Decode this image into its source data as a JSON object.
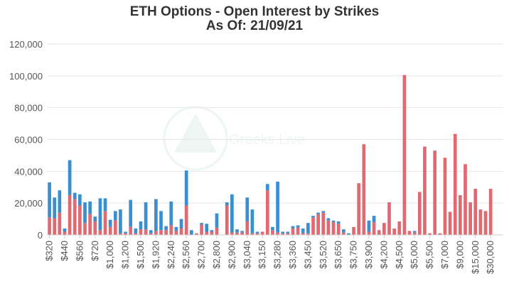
{
  "chart_data": {
    "type": "bar",
    "stacked": true,
    "title": "ETH Options - Open Interest by Strikes",
    "subtitle": "As Of: 21/09/21",
    "watermark": "Greeks.Live",
    "ylim": [
      0,
      120000
    ],
    "yticks": [
      "0",
      "20,000",
      "40,000",
      "60,000",
      "80,000",
      "100,000",
      "120,000"
    ],
    "ytick_values": [
      0,
      20000,
      40000,
      60000,
      80000,
      100000,
      120000
    ],
    "grid": true,
    "legend": "none",
    "colors": {
      "calls": "#3a8fd0",
      "puts": "#e06a72",
      "grid": "#e6e6e6",
      "axis": "#cccccc",
      "tick_text": "#555555"
    },
    "x_tick_labels": [
      {
        "index": 0,
        "label": "$320"
      },
      {
        "index": 3,
        "label": "$440"
      },
      {
        "index": 6,
        "label": "$560"
      },
      {
        "index": 9,
        "label": "$720"
      },
      {
        "index": 12,
        "label": "$1,000"
      },
      {
        "index": 15,
        "label": "$1,200"
      },
      {
        "index": 18,
        "label": "$1,500"
      },
      {
        "index": 21,
        "label": "$1,920"
      },
      {
        "index": 24,
        "label": "$2,240"
      },
      {
        "index": 27,
        "label": "$2,560"
      },
      {
        "index": 30,
        "label": "$2,700"
      },
      {
        "index": 33,
        "label": "$2,800"
      },
      {
        "index": 36,
        "label": "$2,900"
      },
      {
        "index": 39,
        "label": "$3,040"
      },
      {
        "index": 42,
        "label": "$3,150"
      },
      {
        "index": 45,
        "label": "$3,280"
      },
      {
        "index": 48,
        "label": "$3,360"
      },
      {
        "index": 51,
        "label": "$3,450"
      },
      {
        "index": 54,
        "label": "$3,520"
      },
      {
        "index": 57,
        "label": "$3,650"
      },
      {
        "index": 60,
        "label": "$3,750"
      },
      {
        "index": 63,
        "label": "$3,900"
      },
      {
        "index": 66,
        "label": "$4,200"
      },
      {
        "index": 69,
        "label": "$4,500"
      },
      {
        "index": 72,
        "label": "$5,000"
      },
      {
        "index": 75,
        "label": "$5,500"
      },
      {
        "index": 78,
        "label": "$7,000"
      },
      {
        "index": 81,
        "label": "$9,000"
      },
      {
        "index": 84,
        "label": "$15,000"
      },
      {
        "index": 87,
        "label": "$30,000"
      }
    ],
    "series": [
      {
        "key": "calls",
        "values": [
          22000,
          13000,
          14000,
          2000,
          22000,
          4000,
          7000,
          13000,
          8000,
          3000,
          20000,
          8000,
          4500,
          6000,
          15000,
          1000,
          17000,
          3000,
          5000,
          17000,
          2000,
          20000,
          12000,
          2500,
          15000,
          2500,
          6000,
          22000,
          3000,
          0,
          1000,
          5000,
          1000,
          9000,
          0,
          2000,
          24000,
          2000,
          1000,
          15000,
          15000,
          1000,
          0,
          4000,
          2000,
          32000,
          1000,
          1000,
          1500,
          1500,
          3000,
          6500,
          1000,
          1000,
          1000,
          1500,
          1000,
          1500,
          2000,
          1000,
          0,
          0,
          0,
          7000,
          4000,
          0,
          0,
          0,
          0,
          0,
          0,
          0,
          1000,
          0,
          0,
          0,
          0,
          0,
          0,
          0,
          0,
          0,
          0,
          0,
          0,
          0,
          0,
          0,
          0,
          0
        ]
      },
      {
        "key": "puts",
        "values": [
          11000,
          10500,
          14000,
          2000,
          25000,
          22500,
          18500,
          7500,
          13000,
          8500,
          3000,
          15000,
          5000,
          9000,
          1000,
          1000,
          5000,
          1000,
          3500,
          3500,
          1000,
          2500,
          3000,
          3000,
          6000,
          2500,
          4000,
          18500,
          0,
          1000,
          6500,
          2000,
          2000,
          4500,
          0,
          18500,
          1500,
          1500,
          1500,
          8500,
          1000,
          1000,
          2000,
          28000,
          3000,
          1500,
          1000,
          1000,
          4000,
          4500,
          1000,
          1000,
          11000,
          13000,
          14000,
          9000,
          8000,
          7000,
          1500,
          0,
          5000,
          32500,
          57000,
          2000,
          8000,
          3000,
          7500,
          20500,
          4000,
          8500,
          100500,
          2500,
          1500,
          27000,
          55500,
          1000,
          53000,
          1000,
          48500,
          14500,
          63500,
          25000,
          44500,
          20500,
          29000,
          16000,
          15000,
          29000,
          0,
          0
        ]
      }
    ]
  }
}
